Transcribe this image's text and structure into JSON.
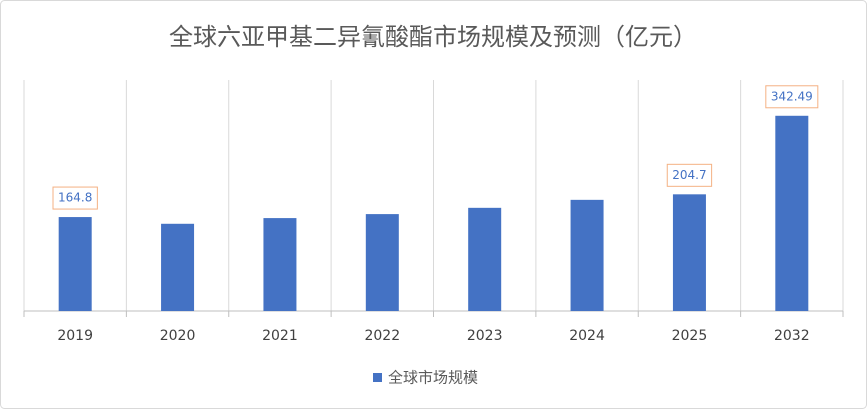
{
  "chart_data": {
    "type": "bar",
    "title": "全球六亚甲基二异氰酸酯市场规模及预测（亿元）",
    "categories": [
      "2019",
      "2020",
      "2021",
      "2022",
      "2023",
      "2024",
      "2025",
      "2032"
    ],
    "series": [
      {
        "name": "全球市场规模",
        "color": "#4472c4",
        "values": [
          164.8,
          153,
          163,
          170,
          181,
          195,
          204.7,
          342.49
        ],
        "value_labels": [
          "164.8",
          null,
          null,
          null,
          null,
          null,
          "204.7",
          "342.49"
        ]
      }
    ],
    "ylim": [
      0,
      400
    ],
    "grid": true
  }
}
